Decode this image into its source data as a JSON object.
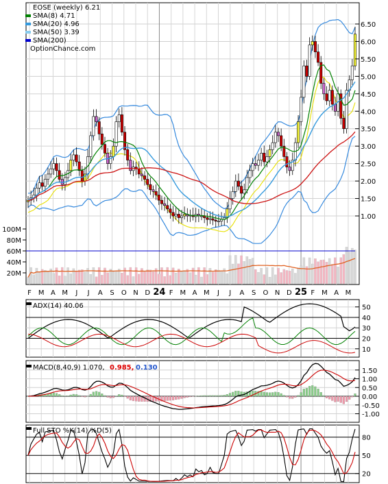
{
  "chart_data": [
    {
      "type": "candlestick",
      "title": "EOSE (weekly) 6.21",
      "watermark": "OptionChance.com",
      "legend": [
        {
          "label": "SMA(8) 4.71",
          "color": "#008000"
        },
        {
          "label": "SMA(20) 4.96",
          "color": "#3399dd"
        },
        {
          "label": "SMA(50) 3.39",
          "color": "#88ccee"
        },
        {
          "label": "SMA(200)",
          "color": "#0000cc"
        }
      ],
      "y_ticks": [
        "6.50",
        "6.00",
        "5.50",
        "5.00",
        "4.50",
        "4.00",
        "3.50",
        "3.00",
        "2.50",
        "2.00",
        "1.50",
        "1.00"
      ],
      "x_ticks": [
        "F",
        "M",
        "A",
        "M",
        "J",
        "J",
        "A",
        "S",
        "O",
        "N",
        "D",
        "24",
        "F",
        "M",
        "A",
        "M",
        "J",
        "J",
        "A",
        "S",
        "O",
        "N",
        "D",
        "25",
        "F",
        "M",
        "A",
        "M"
      ],
      "close": [
        1.45,
        1.52,
        1.6,
        1.8,
        1.95,
        1.85,
        2.05,
        2.2,
        2.35,
        2.5,
        2.3,
        2.05,
        1.9,
        2.1,
        2.3,
        2.6,
        2.75,
        2.55,
        2.3,
        2.0,
        2.2,
        2.7,
        3.3,
        3.85,
        3.7,
        3.35,
        3.05,
        2.8,
        2.5,
        2.7,
        3.0,
        3.7,
        3.9,
        3.4,
        2.9,
        2.6,
        2.3,
        2.4,
        2.35,
        2.2,
        2.15,
        2.05,
        1.9,
        1.75,
        1.7,
        1.6,
        1.45,
        1.35,
        1.3,
        1.2,
        1.1,
        1.0,
        1.05,
        0.95,
        1.0,
        1.05,
        1.0,
        1.02,
        0.98,
        1.05,
        1.0,
        1.0,
        0.95,
        0.9,
        0.92,
        0.88,
        0.85,
        0.85,
        0.9,
        0.95,
        1.2,
        1.5,
        1.7,
        2.0,
        1.85,
        1.65,
        1.75,
        2.1,
        2.3,
        2.5,
        2.45,
        2.6,
        2.8,
        2.55,
        2.7,
        2.9,
        3.1,
        3.4,
        3.3,
        3.0,
        2.7,
        2.4,
        2.3,
        2.6,
        3.1,
        3.7,
        4.4,
        5.3,
        5.0,
        5.9,
        6.0,
        5.7,
        5.4,
        4.8,
        4.5,
        4.3,
        4.6,
        4.2,
        4.0,
        4.5,
        3.8,
        3.5,
        4.6,
        4.9,
        5.3,
        6.21
      ],
      "volume_ticks": [
        "100M",
        "80M",
        "60M",
        "40M",
        "20M"
      ],
      "volume_reference": 60
    },
    {
      "type": "line",
      "title": "ADX(14) 40.06",
      "y_ticks": [
        "50",
        "40",
        "30",
        "20",
        "10"
      ],
      "reference_lines": [
        40,
        20
      ]
    },
    {
      "type": "line",
      "title": "MACD(8,40,9) 1.070,",
      "values_shown": [
        {
          "label": "0.985,",
          "color": "#e00000"
        },
        {
          "label": "0.130",
          "color": "#2255cc"
        }
      ],
      "y_ticks": [
        "1.50",
        "1.00",
        "0.50",
        "0.00",
        "-0.50",
        "-1.00"
      ]
    },
    {
      "type": "line",
      "title": "Full STO %K(14) %D(5)",
      "y_ticks": [
        "80",
        "50",
        "20"
      ],
      "reference_lines": [
        80,
        20
      ]
    }
  ]
}
